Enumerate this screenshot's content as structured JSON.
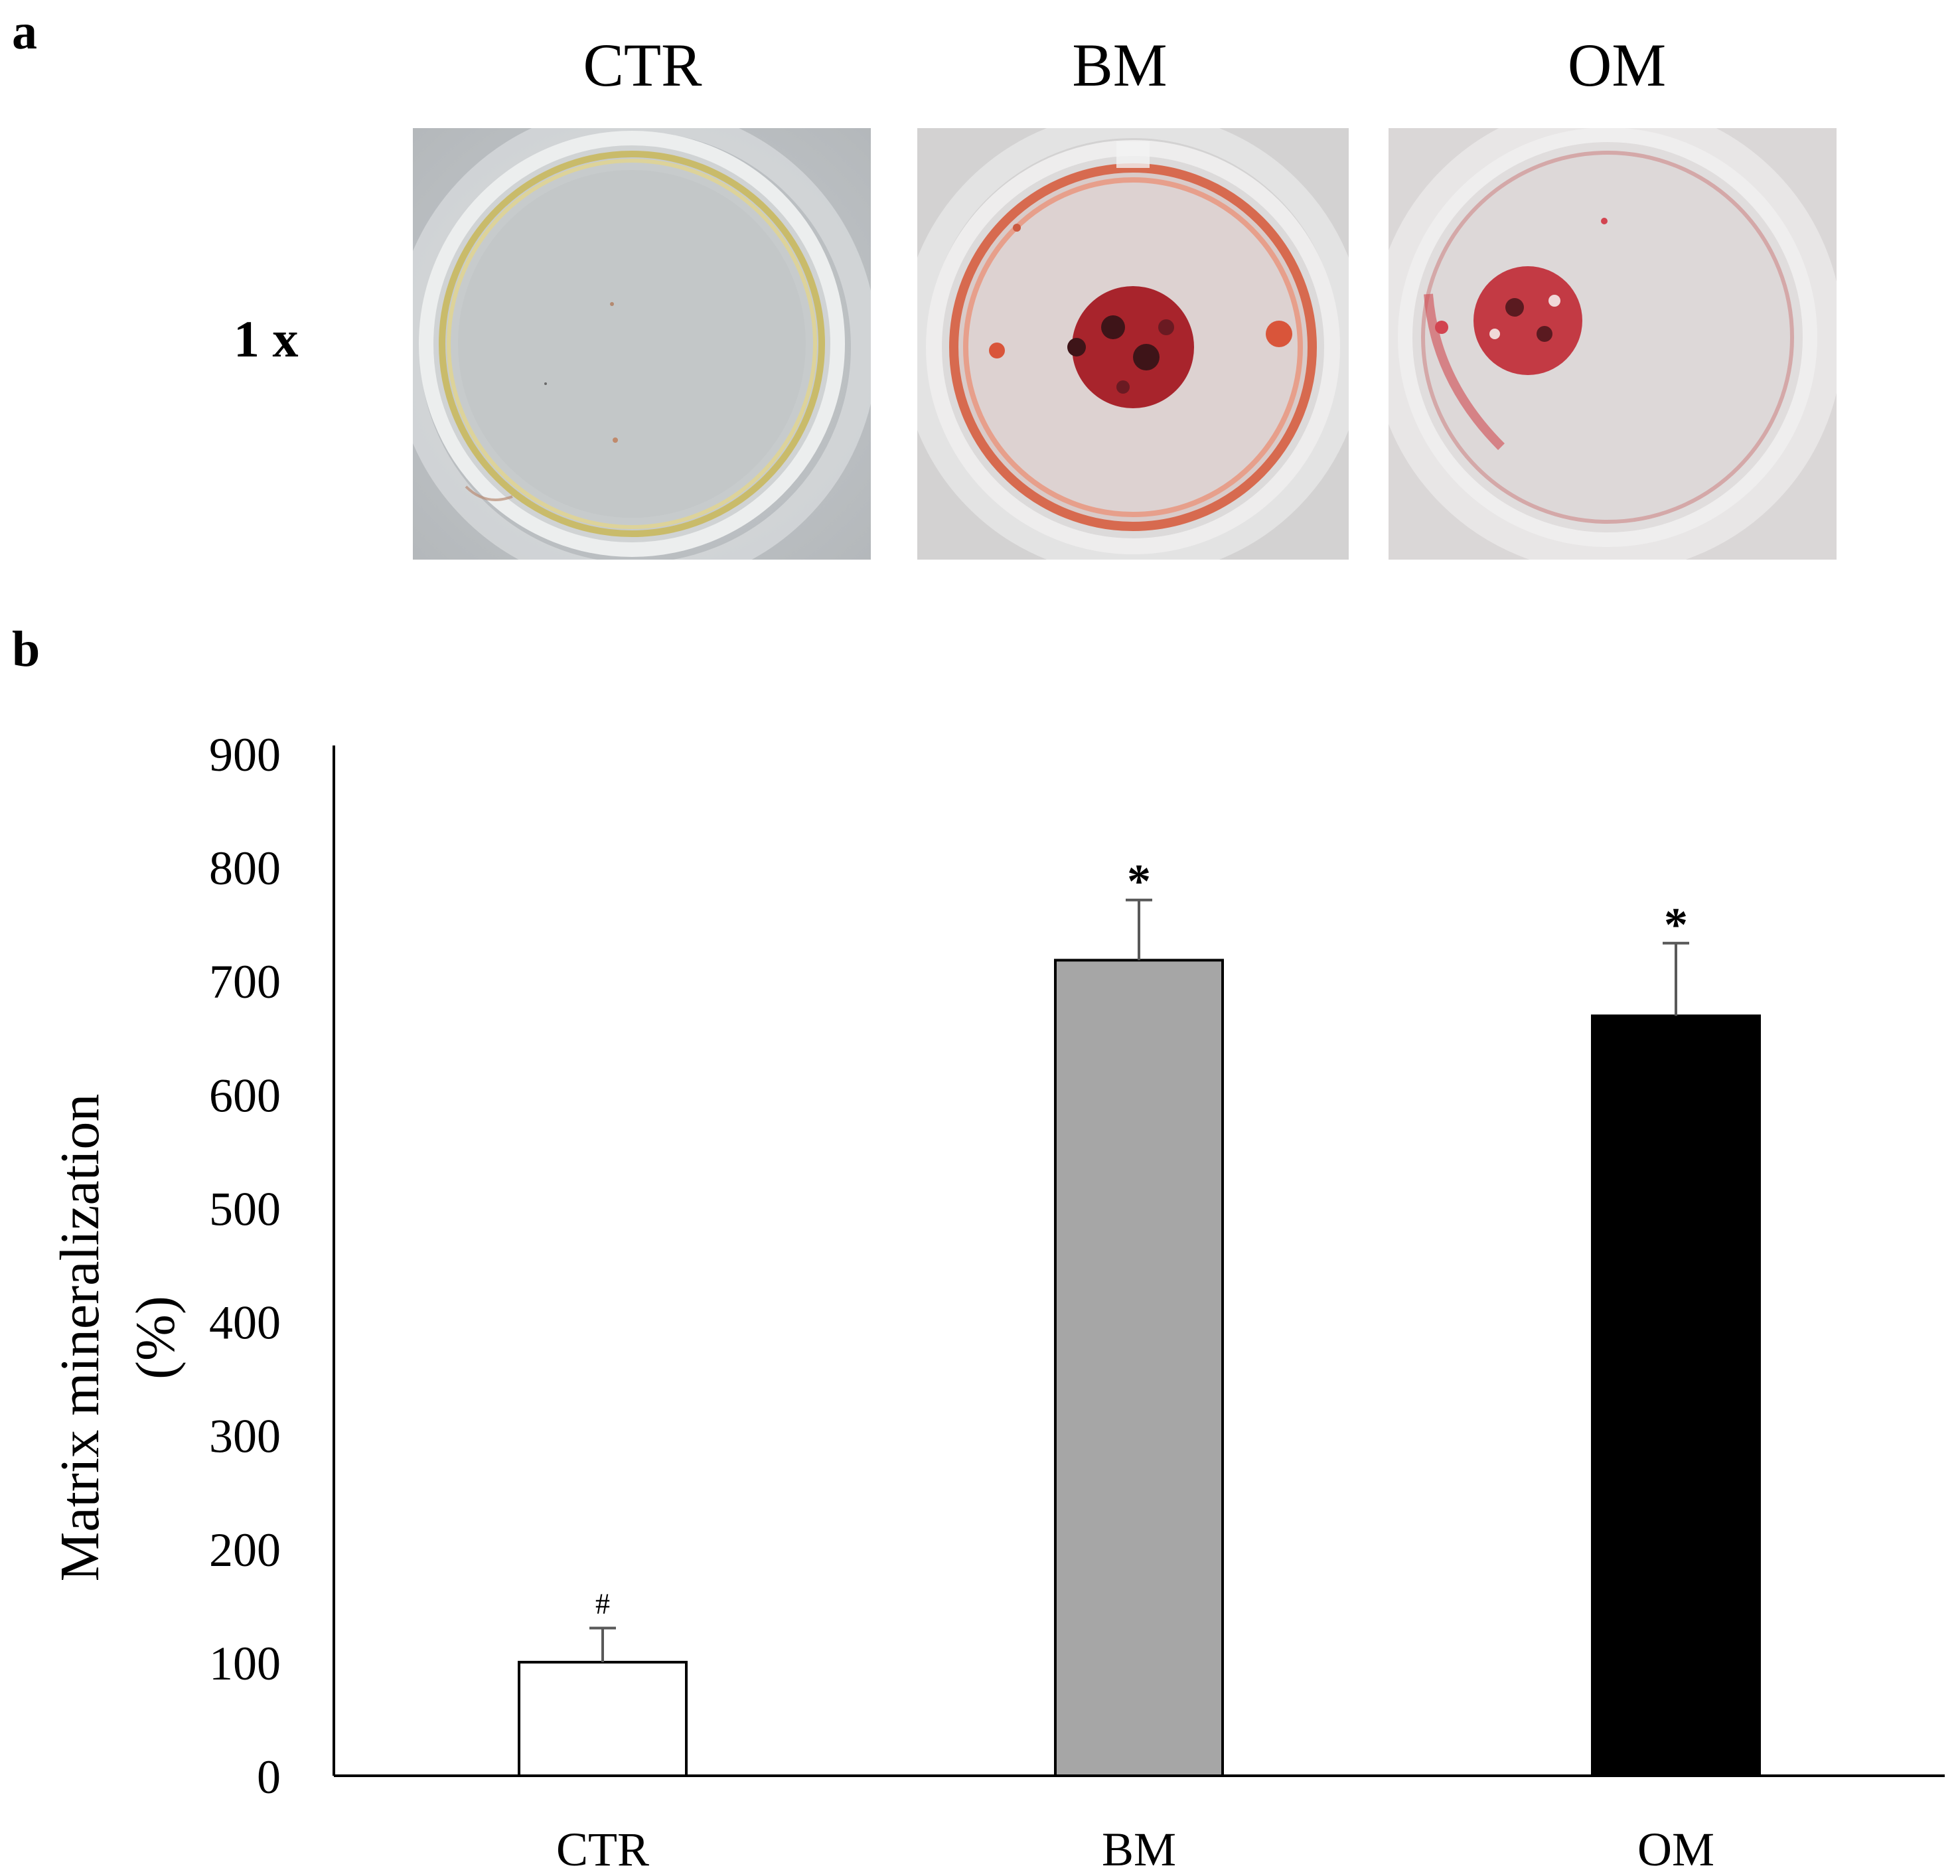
{
  "panel_a": {
    "letter": "a",
    "row_label": "1 x",
    "columns": [
      {
        "title": "CTR",
        "photo": "well-photo-ctr"
      },
      {
        "title": "BM",
        "photo": "well-photo-bm"
      },
      {
        "title": "OM",
        "photo": "well-photo-om"
      }
    ]
  },
  "panel_b": {
    "letter": "b"
  },
  "colors": {
    "ctr_bar": "#ffffff",
    "bm_bar": "#a6a6a6",
    "om_bar": "#000000",
    "error_bar": "#595959",
    "axis": "#000000"
  },
  "chart_data": {
    "type": "bar",
    "title": "",
    "xlabel": "",
    "ylabel": "Matrix mineralization (%)",
    "ylabel_lines": [
      "Matrix mineralization",
      "(%)"
    ],
    "categories": [
      "CTR",
      "BM",
      "OM"
    ],
    "values": [
      100,
      718,
      669
    ],
    "errors": [
      30,
      53,
      64
    ],
    "annotations": [
      "#",
      "*",
      "*"
    ],
    "ylim": [
      0,
      900
    ],
    "yticks": [
      0,
      100,
      200,
      300,
      400,
      500,
      600,
      700,
      800,
      900
    ],
    "grid": false,
    "legend": "none"
  }
}
